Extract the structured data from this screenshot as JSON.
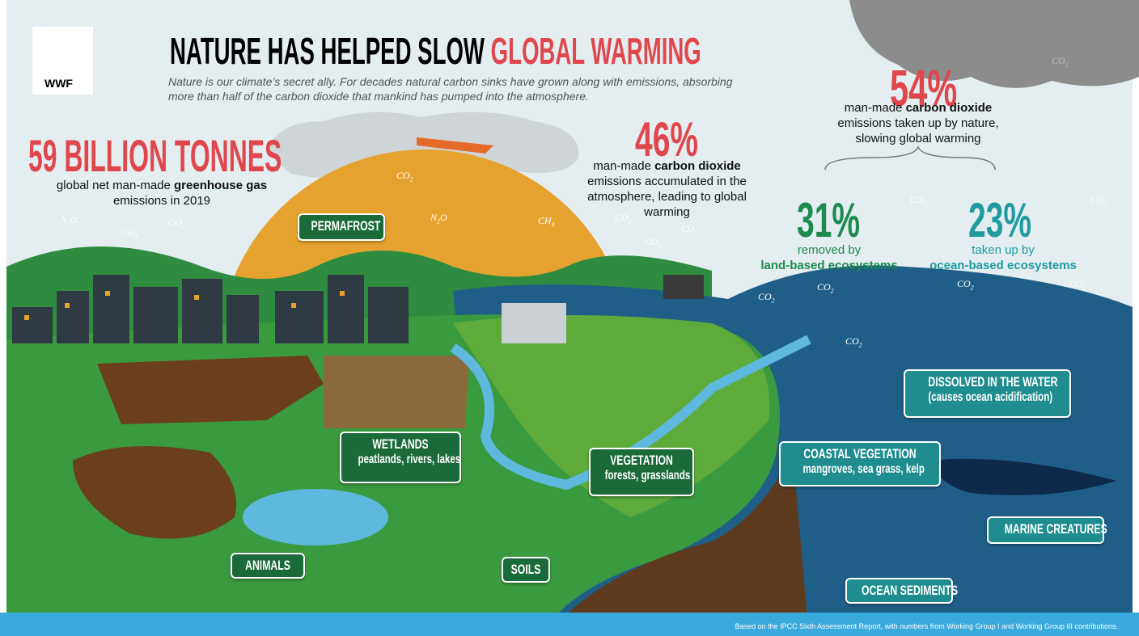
{
  "logo": {
    "text": "WWF"
  },
  "header": {
    "title_part1": "NATURE HAS HELPED SLOW",
    "title_part2": "GLOBAL WARMING",
    "subtitle": "Nature is our climate’s secret ally. For decades natural carbon sinks have grown along with emissions, absorbing more than half of the carbon dioxide that mankind has pumped into the atmosphere."
  },
  "stats": [
    {
      "value": "59 BILLION TONNES",
      "text_before": "global net man-made",
      "bold": "greenhouse gas",
      "text_after": "emissions in 2019"
    },
    {
      "value": "46%",
      "text_before": "man-made",
      "bold": "carbon dioxide",
      "text_after": "emissions accumulated in the atmosphere, leading to global warming"
    },
    {
      "value": "54%",
      "text_before": "man-made",
      "bold": "carbon dioxide",
      "text_after": "emissions taken up by nature, slowing global warming"
    },
    {
      "value": "31%",
      "text": "removed by",
      "bold": "land-based ecosystems"
    },
    {
      "value": "23%",
      "text": "taken up by",
      "bold": "ocean-based ecosystems"
    }
  ],
  "labels": [
    {
      "title": "PERMAFROST"
    },
    {
      "title": "WETLANDS",
      "subtitle": "peatlands, rivers, lakes"
    },
    {
      "title": "VEGETATION",
      "subtitle": "forests, grasslands"
    },
    {
      "title": "COASTAL VEGETATION",
      "subtitle": "mangroves, sea grass, kelp"
    },
    {
      "title": "DISSOLVED IN THE WATER",
      "subtitle": "(causes ocean acidification)"
    },
    {
      "title": "MARINE CREATURES"
    },
    {
      "title": "ANIMALS"
    },
    {
      "title": "SOILS"
    },
    {
      "title": "OCEAN SEDIMENTS"
    }
  ],
  "gases": [
    {
      "formula": "CO",
      "sub": "2"
    },
    {
      "formula": "CO",
      "sub": "2"
    },
    {
      "formula": "N",
      "sub": "2",
      "tail": "O"
    },
    {
      "formula": "CH",
      "sub": "4"
    },
    {
      "formula": "CO",
      "sub": "2"
    },
    {
      "formula": "N",
      "sub": "2",
      "tail": "O"
    },
    {
      "formula": "CH",
      "sub": "4"
    },
    {
      "formula": "CO",
      "sub": "2"
    },
    {
      "formula": "CO",
      "sub": "2"
    },
    {
      "formula": "CO",
      "sub": "2"
    },
    {
      "formula": "CO",
      "sub": "2"
    },
    {
      "formula": "CO",
      "sub": "2"
    },
    {
      "formula": "CO",
      "sub": "2"
    },
    {
      "formula": "CO",
      "sub": "2"
    },
    {
      "formula": "CO",
      "sub": "2"
    },
    {
      "formula": "CO",
      "sub": "2"
    },
    {
      "formula": "CO",
      "sub": "2"
    }
  ],
  "footer": "Based on the IPCC Sixth Assessment Report, with numbers from Working Group I and Working Group III contributions."
}
